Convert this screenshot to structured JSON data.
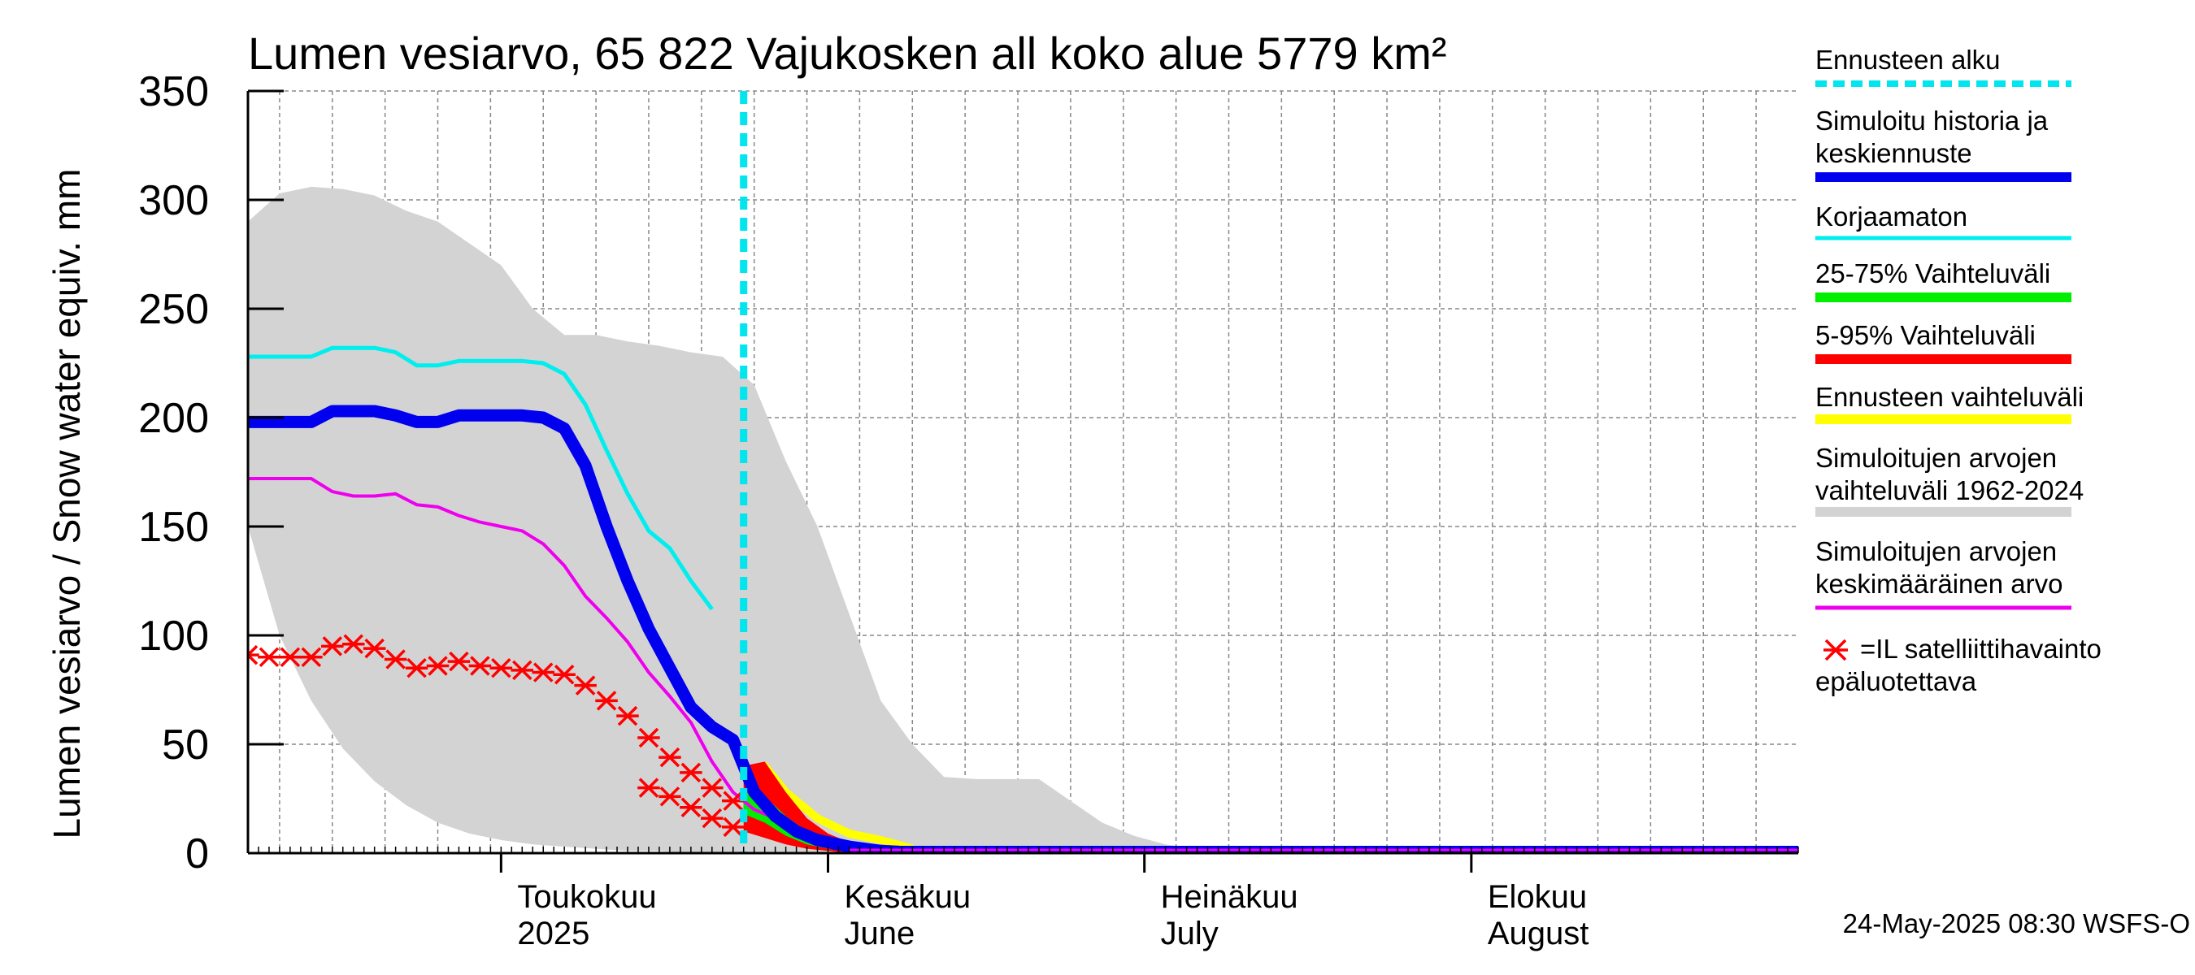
{
  "chart_data": {
    "type": "line",
    "title": "Lumen vesiarvo, 65 822 Vajukosken all koko alue 5779 km²",
    "ylabel": "Lumen vesiarvo / Snow water equiv.    mm",
    "ylim": [
      0,
      350
    ],
    "yticks": [
      0,
      50,
      100,
      150,
      200,
      250,
      300,
      350
    ],
    "xlim": [
      "2025-04-07",
      "2025-09-01"
    ],
    "forecast_start": "2025-05-24",
    "grid": true,
    "legend_position": "right",
    "month_labels": [
      {
        "date": "2025-05-01",
        "line1": "Toukokuu",
        "line2": "2025"
      },
      {
        "date": "2025-06-01",
        "line1": "Kesäkuu",
        "line2": "June"
      },
      {
        "date": "2025-07-01",
        "line1": "Heinäkuu",
        "line2": "July"
      },
      {
        "date": "2025-08-01",
        "line1": "Elokuu",
        "line2": "August"
      }
    ],
    "legend": [
      {
        "label": "Ennusteen alku",
        "color": "#00e5ee",
        "style": "dashed"
      },
      {
        "label": "Simuloitu historia ja keskiennuste",
        "color": "#0000ee",
        "style": "thick"
      },
      {
        "label": "Korjaamaton",
        "color": "#00eeee",
        "style": "line"
      },
      {
        "label": "25-75% Vaihteluväli",
        "color": "#00ee00",
        "style": "thick"
      },
      {
        "label": "5-95% Vaihteluväli",
        "color": "#ff0000",
        "style": "thick"
      },
      {
        "label": "Ennusteen vaihteluväli",
        "color": "#ffff00",
        "style": "thick"
      },
      {
        "label": "Simuloitujen arvojen vaihteluväli 1962-2024",
        "color": "#d3d3d3",
        "style": "thick"
      },
      {
        "label": "Simuloitujen arvojen keskimääräinen arvo",
        "color": "#ee00ee",
        "style": "line"
      },
      {
        "label": "=IL satelliittihavainto epäluotettava",
        "color": "#ff0000",
        "style": "marker"
      }
    ],
    "series": [
      {
        "name": "Simuloitujen arvojen vaihteluväli 1962-2024",
        "kind": "band",
        "color": "#d3d3d3",
        "x": [
          "2025-04-07",
          "2025-04-10",
          "2025-04-13",
          "2025-04-16",
          "2025-04-19",
          "2025-04-22",
          "2025-04-25",
          "2025-04-28",
          "2025-05-01",
          "2025-05-04",
          "2025-05-07",
          "2025-05-10",
          "2025-05-13",
          "2025-05-16",
          "2025-05-19",
          "2025-05-22",
          "2025-05-25",
          "2025-05-28",
          "2025-05-31",
          "2025-06-03",
          "2025-06-06",
          "2025-06-09",
          "2025-06-12",
          "2025-06-15",
          "2025-06-18",
          "2025-06-21",
          "2025-06-24",
          "2025-06-27",
          "2025-06-30",
          "2025-07-03",
          "2025-07-06",
          "2025-07-09",
          "2025-07-12",
          "2025-07-15",
          "2025-07-31",
          "2025-08-15",
          "2025-09-01"
        ],
        "upper": [
          290,
          303,
          306,
          305,
          302,
          295,
          290,
          280,
          270,
          250,
          238,
          238,
          235,
          233,
          230,
          228,
          215,
          180,
          150,
          110,
          70,
          50,
          35,
          34,
          34,
          34,
          24,
          14,
          8,
          4,
          2,
          1,
          0,
          0,
          0,
          0,
          0
        ],
        "lower": [
          150,
          100,
          70,
          48,
          33,
          22,
          14,
          9,
          6,
          4,
          3,
          2,
          1,
          1,
          0,
          0,
          0,
          0,
          0,
          0,
          0,
          0,
          0,
          0,
          0,
          0,
          0,
          0,
          0,
          0,
          0,
          0,
          0,
          0,
          0,
          0,
          0
        ]
      },
      {
        "name": "Korjaamaton",
        "kind": "line",
        "color": "#00eeee",
        "x": [
          "2025-04-07",
          "2025-04-09",
          "2025-04-11",
          "2025-04-13",
          "2025-04-15",
          "2025-04-17",
          "2025-04-19",
          "2025-04-21",
          "2025-04-23",
          "2025-04-25",
          "2025-04-27",
          "2025-04-29",
          "2025-05-01",
          "2025-05-03",
          "2025-05-05",
          "2025-05-07",
          "2025-05-09",
          "2025-05-11",
          "2025-05-13",
          "2025-05-15",
          "2025-05-17",
          "2025-05-19",
          "2025-05-21"
        ],
        "y": [
          228,
          228,
          228,
          228,
          232,
          232,
          232,
          230,
          224,
          224,
          226,
          226,
          226,
          226,
          225,
          220,
          206,
          185,
          165,
          148,
          140,
          125,
          112
        ]
      },
      {
        "name": "Simuloitujen arvojen keskimääräinen arvo",
        "kind": "line",
        "color": "#ee00ee",
        "x": [
          "2025-04-07",
          "2025-04-09",
          "2025-04-11",
          "2025-04-13",
          "2025-04-15",
          "2025-04-17",
          "2025-04-19",
          "2025-04-21",
          "2025-04-23",
          "2025-04-25",
          "2025-04-27",
          "2025-04-29",
          "2025-05-01",
          "2025-05-03",
          "2025-05-05",
          "2025-05-07",
          "2025-05-09",
          "2025-05-11",
          "2025-05-13",
          "2025-05-15",
          "2025-05-17",
          "2025-05-19",
          "2025-05-21",
          "2025-05-23",
          "2025-05-25",
          "2025-05-27",
          "2025-05-29",
          "2025-05-31",
          "2025-06-03",
          "2025-06-10",
          "2025-07-01",
          "2025-08-01",
          "2025-09-01"
        ],
        "y": [
          172,
          172,
          172,
          172,
          166,
          164,
          164,
          165,
          160,
          159,
          155,
          152,
          150,
          148,
          142,
          132,
          118,
          108,
          97,
          83,
          72,
          60,
          42,
          28,
          20,
          16,
          12,
          8,
          4,
          2,
          1,
          1,
          1
        ]
      },
      {
        "name": "5-95% Vaihteluväli",
        "kind": "band",
        "color": "#ff0000",
        "x": [
          "2025-05-24",
          "2025-05-26",
          "2025-05-28",
          "2025-05-30",
          "2025-06-01",
          "2025-06-03",
          "2025-06-06"
        ],
        "upper": [
          40,
          42,
          28,
          16,
          9,
          5,
          1
        ],
        "lower": [
          10,
          7,
          4,
          2,
          1,
          0,
          0
        ]
      },
      {
        "name": "25-75% Vaihteluväli",
        "kind": "band",
        "color": "#00ee00",
        "x": [
          "2025-05-24",
          "2025-05-26",
          "2025-05-28",
          "2025-05-30",
          "2025-06-01",
          "2025-06-03",
          "2025-06-06"
        ],
        "upper": [
          28,
          26,
          17,
          10,
          6,
          3,
          1
        ],
        "lower": [
          18,
          14,
          8,
          4,
          2,
          1,
          0
        ]
      },
      {
        "name": "Ennusteen vaihteluväli",
        "kind": "line",
        "color": "#ffff00",
        "x": [
          "2025-05-24",
          "2025-05-26",
          "2025-05-28",
          "2025-05-31",
          "2025-06-03",
          "2025-06-06",
          "2025-06-09"
        ],
        "y": [
          38,
          40,
          28,
          16,
          9,
          6,
          2
        ]
      },
      {
        "name": "Simuloitu historia ja keskiennuste",
        "kind": "line",
        "color": "#0000ee",
        "x": [
          "2025-04-07",
          "2025-04-09",
          "2025-04-11",
          "2025-04-13",
          "2025-04-15",
          "2025-04-17",
          "2025-04-19",
          "2025-04-21",
          "2025-04-23",
          "2025-04-25",
          "2025-04-27",
          "2025-04-29",
          "2025-05-01",
          "2025-05-03",
          "2025-05-05",
          "2025-05-07",
          "2025-05-09",
          "2025-05-11",
          "2025-05-13",
          "2025-05-15",
          "2025-05-17",
          "2025-05-19",
          "2025-05-21",
          "2025-05-23",
          "2025-05-25",
          "2025-05-27",
          "2025-05-29",
          "2025-05-31",
          "2025-06-03",
          "2025-06-06",
          "2025-06-10",
          "2025-07-01",
          "2025-08-01",
          "2025-09-01"
        ],
        "y": [
          198,
          198,
          198,
          198,
          203,
          203,
          203,
          201,
          198,
          198,
          201,
          201,
          201,
          201,
          200,
          195,
          178,
          150,
          125,
          103,
          85,
          67,
          58,
          52,
          28,
          17,
          10,
          6,
          3,
          1,
          0,
          0,
          0,
          0
        ]
      },
      {
        "name": "=IL satelliittihavainto epäluotettava",
        "kind": "markers",
        "color": "#ff0000",
        "x": [
          "2025-04-07",
          "2025-04-09",
          "2025-04-11",
          "2025-04-13",
          "2025-04-15",
          "2025-04-17",
          "2025-04-19",
          "2025-04-21",
          "2025-04-23",
          "2025-04-25",
          "2025-04-27",
          "2025-04-29",
          "2025-05-01",
          "2025-05-03",
          "2025-05-05",
          "2025-05-07",
          "2025-05-09",
          "2025-05-11",
          "2025-05-13",
          "2025-05-15",
          "2025-05-17",
          "2025-05-19",
          "2025-05-21",
          "2025-05-23"
        ],
        "y": [
          91,
          90,
          90,
          90,
          95,
          96,
          94,
          89,
          85,
          86,
          88,
          86,
          85,
          84,
          83,
          82,
          77,
          70,
          63,
          53,
          44,
          37,
          30,
          24
        ]
      },
      {
        "name": "=IL satelliittihavainto epäluotettava (late)",
        "kind": "markers-continued",
        "color": "#ff0000",
        "x": [
          "2025-05-15",
          "2025-05-17",
          "2025-05-19",
          "2025-05-21",
          "2025-05-23"
        ],
        "y": [
          30,
          26,
          21,
          16,
          12
        ]
      }
    ]
  },
  "footer": {
    "timestamp": "24-May-2025 08:30 WSFS-O"
  }
}
